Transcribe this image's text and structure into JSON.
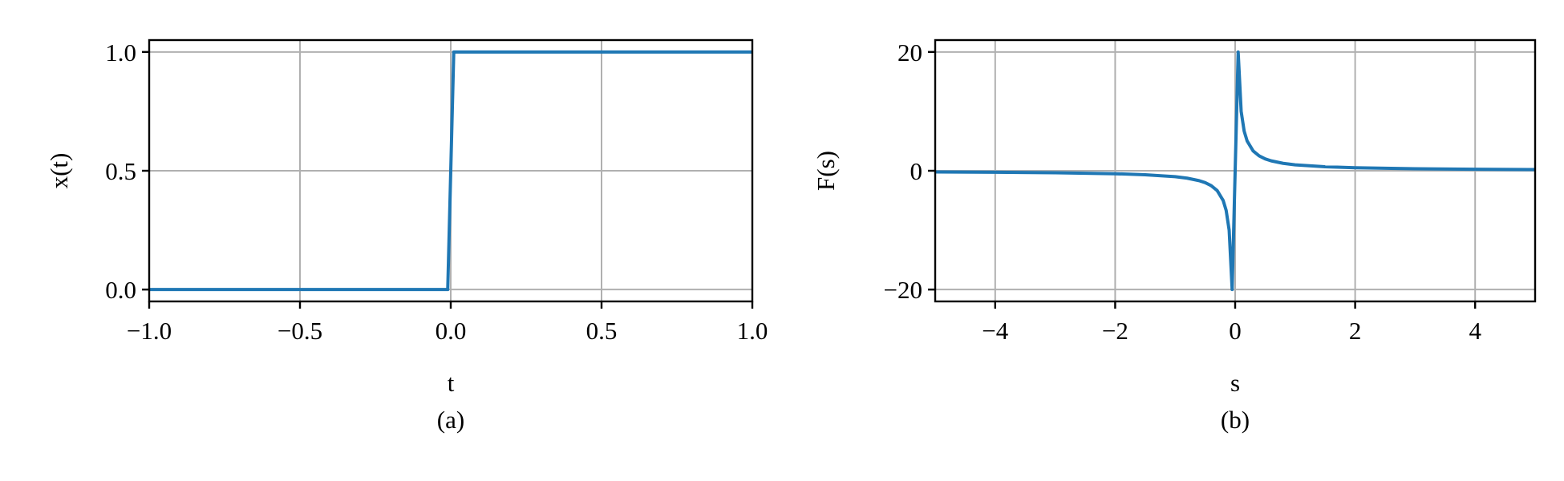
{
  "figure": {
    "captions": [
      "(a)",
      "(b)"
    ]
  },
  "chart_data": [
    {
      "type": "line",
      "xlabel": "t",
      "ylabel": "x(t)",
      "xlim": [
        -1.0,
        1.0
      ],
      "ylim": [
        -0.05,
        1.05
      ],
      "xticks": [
        -1.0,
        -0.5,
        0.0,
        0.5,
        1.0
      ],
      "xtick_labels": [
        "−1.0",
        "−0.5",
        "0.0",
        "0.5",
        "1.0"
      ],
      "yticks": [
        0.0,
        0.5,
        1.0
      ],
      "ytick_labels": [
        "0.0",
        "0.5",
        "1.0"
      ],
      "grid": true,
      "color": "#1f77b4",
      "series": [
        {
          "x": [
            -1.0,
            -0.01,
            0.01,
            1.0
          ],
          "y": [
            0.0,
            0.0,
            1.0,
            1.0
          ]
        }
      ]
    },
    {
      "type": "line",
      "xlabel": "s",
      "ylabel": "F(s)",
      "xlim": [
        -5.0,
        5.0
      ],
      "ylim": [
        -22,
        22
      ],
      "xticks": [
        -4,
        -2,
        0,
        2,
        4
      ],
      "xtick_labels": [
        "−4",
        "−2",
        "0",
        "2",
        "4"
      ],
      "yticks": [
        -20,
        0,
        20
      ],
      "ytick_labels": [
        "−20",
        "0",
        "20"
      ],
      "grid": true,
      "color": "#1f77b4",
      "series": [
        {
          "x": [
            -5.0,
            -4.0,
            -3.0,
            -2.0,
            -1.5,
            -1.0,
            -0.8,
            -0.6,
            -0.5,
            -0.4,
            -0.3,
            -0.2,
            -0.15,
            -0.1,
            -0.05,
            0.05,
            0.1,
            0.15,
            0.2,
            0.3,
            0.4,
            0.5,
            0.6,
            0.8,
            1.0,
            1.5,
            2.0,
            3.0,
            4.0,
            5.0
          ],
          "y": [
            -0.2,
            -0.25,
            -0.33,
            -0.5,
            -0.67,
            -1.0,
            -1.25,
            -1.67,
            -2.0,
            -2.5,
            -3.33,
            -5.0,
            -6.67,
            -10.0,
            -20.0,
            20.0,
            10.0,
            6.67,
            5.0,
            3.33,
            2.5,
            2.0,
            1.67,
            1.25,
            1.0,
            0.67,
            0.5,
            0.33,
            0.25,
            0.2
          ]
        }
      ]
    }
  ]
}
